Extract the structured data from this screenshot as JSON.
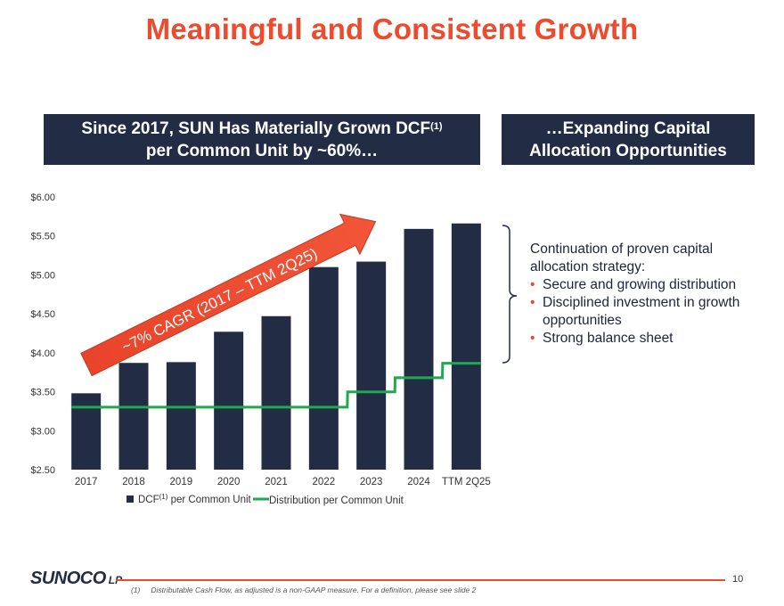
{
  "title": "Meaningful and Consistent Growth",
  "left_header": {
    "line1_prefix": "Since 2017, SUN Has Materially Grown DCF",
    "line1_sup": "(1)",
    "line2": "per Common Unit by ~60%…"
  },
  "right_header": {
    "line1": "…Expanding Capital",
    "line2": "Allocation Opportunities"
  },
  "right_text": {
    "intro": "Continuation of proven capital allocation strategy:",
    "bullets": [
      "Secure and growing distribution",
      "Disciplined investment in growth opportunities",
      "Strong balance sheet"
    ],
    "bullet_char": "•"
  },
  "chart_data": {
    "type": "bar",
    "categories": [
      "2017",
      "2018",
      "2019",
      "2020",
      "2021",
      "2022",
      "2023",
      "2024",
      "TTM 2Q25"
    ],
    "series": [
      {
        "name": "DCF per Common Unit",
        "type": "bar",
        "color": "#232c45",
        "values": [
          3.48,
          3.87,
          3.88,
          4.27,
          4.47,
          5.1,
          5.17,
          5.59,
          5.66
        ]
      },
      {
        "name": "Distribution per Common Unit",
        "type": "step-line",
        "color": "#1fa94e",
        "values": [
          3.302,
          3.302,
          3.302,
          3.302,
          3.302,
          3.302,
          3.4979,
          3.6793,
          3.866
        ]
      }
    ],
    "y_ticks": [
      "$2.50",
      "$3.00",
      "$3.50",
      "$4.00",
      "$4.50",
      "$5.00",
      "$5.50",
      "$6.00"
    ],
    "ylim": [
      2.5,
      6.0
    ],
    "legend": {
      "dcf_label_prefix": "DCF",
      "dcf_label_sup": "(1)",
      "dcf_label_suffix": " per Common Unit",
      "dist_label": "Distribution per Common Unit",
      "position": "bottom"
    },
    "annotation": "~7% CAGR (2017 – TTM 2Q25)"
  },
  "colors": {
    "accent": "#ee4a2e",
    "navy": "#232c45",
    "green": "#1fa94e"
  },
  "footer": {
    "logo_main": "SUNOCO",
    "logo_suffix": "LP",
    "page_number": "10",
    "footnote_mark": "(1)",
    "footnote_text": "Distributable Cash Flow, as adjusted is a non-GAAP measure. For a definition, please see slide 2"
  }
}
